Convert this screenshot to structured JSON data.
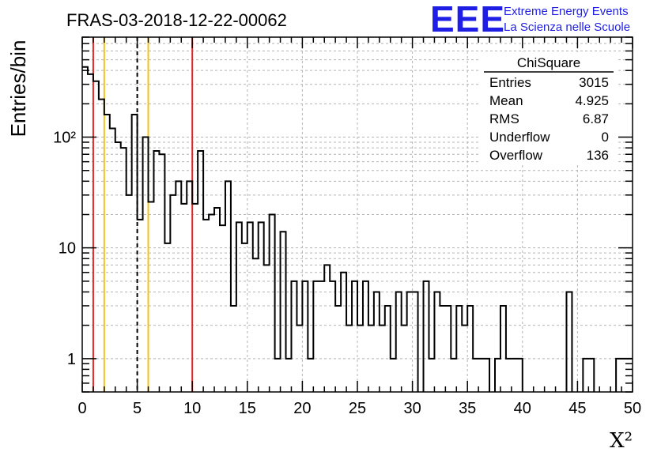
{
  "header": {
    "title": "FRAS-03-2018-12-22-00062",
    "logo_letters": "EEE",
    "logo_line1": "Extreme Energy Events",
    "logo_line2": "La Scienza nelle Scuole",
    "logo_color": "#1e1ee6"
  },
  "stats_box": {
    "name": "ChiSquare",
    "rows": [
      {
        "label": "Entries",
        "value": "3015"
      },
      {
        "label": "Mean",
        "value": "4.925"
      },
      {
        "label": "RMS",
        "value": "6.87"
      },
      {
        "label": "Underflow",
        "value": "0"
      },
      {
        "label": "Overflow",
        "value": "136"
      }
    ]
  },
  "chart_data": {
    "type": "histogram",
    "title": "FRAS-03-2018-12-22-00062",
    "xlabel": "X²",
    "ylabel": "Entries/bin",
    "xlim": [
      0,
      50
    ],
    "ylim": [
      0.5,
      800
    ],
    "yscale": "log",
    "bin_width": 0.5,
    "grid": true,
    "x_ticks": [
      0,
      5,
      10,
      15,
      20,
      25,
      30,
      35,
      40,
      45,
      50
    ],
    "y_ticks": [
      {
        "value": 1,
        "label": "1"
      },
      {
        "value": 10,
        "label": "10"
      },
      {
        "value": 100,
        "label": "10²"
      }
    ],
    "values": [
      430,
      370,
      320,
      220,
      160,
      120,
      90,
      80,
      30,
      160,
      18,
      100,
      26,
      75,
      70,
      11,
      30,
      40,
      25,
      40,
      25,
      75,
      18,
      20,
      23,
      16,
      40,
      3,
      17,
      11,
      17,
      8,
      17,
      7,
      20,
      1,
      14,
      1,
      5,
      2,
      5,
      1,
      5,
      5,
      7,
      5,
      3,
      6,
      2,
      5,
      2,
      5,
      2,
      4,
      2,
      3,
      1,
      4,
      2,
      4,
      4,
      0,
      5,
      1,
      4,
      3,
      3,
      1,
      3,
      2,
      3,
      1,
      1,
      1,
      0,
      1,
      3,
      1,
      1,
      1,
      0,
      0,
      0,
      0,
      0,
      0,
      0,
      0,
      4,
      0,
      0,
      1,
      1,
      0,
      0,
      0,
      0,
      1,
      1,
      1
    ],
    "vertical_lines": [
      {
        "x": 1,
        "color": "#e8231f",
        "style": "solid"
      },
      {
        "x": 2,
        "color": "#f5c21b",
        "style": "solid"
      },
      {
        "x": 5,
        "color": "#000000",
        "style": "dashed"
      },
      {
        "x": 6,
        "color": "#f5c21b",
        "style": "solid"
      },
      {
        "x": 10,
        "color": "#e8231f",
        "style": "solid"
      }
    ]
  }
}
